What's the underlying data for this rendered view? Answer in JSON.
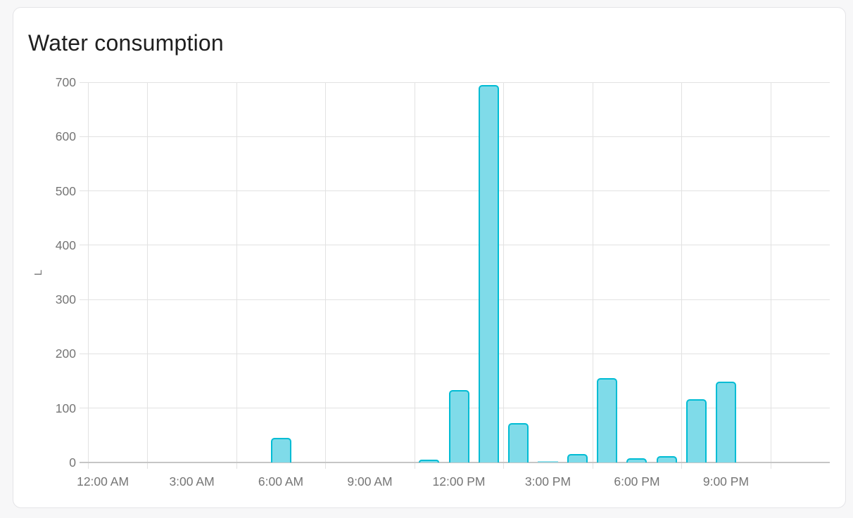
{
  "page": {
    "background": "#f7f7f8",
    "card_background": "#ffffff"
  },
  "chart_data": {
    "type": "bar",
    "title": "Water consumption",
    "ylabel": "L",
    "unit": "L",
    "ylim": [
      0,
      700
    ],
    "y_ticks": [
      0,
      100,
      200,
      300,
      400,
      500,
      600,
      700
    ],
    "x_tick_labels": [
      "12:00 AM",
      "3:00 AM",
      "6:00 AM",
      "9:00 AM",
      "12:00 PM",
      "3:00 PM",
      "6:00 PM",
      "9:00 PM"
    ],
    "x_tick_hours": [
      0,
      3,
      6,
      9,
      12,
      15,
      18,
      21
    ],
    "categories": [
      "12:00 AM",
      "1:00 AM",
      "2:00 AM",
      "3:00 AM",
      "4:00 AM",
      "5:00 AM",
      "6:00 AM",
      "7:00 AM",
      "8:00 AM",
      "9:00 AM",
      "10:00 AM",
      "11:00 AM",
      "12:00 PM",
      "1:00 PM",
      "2:00 PM",
      "3:00 PM",
      "4:00 PM",
      "5:00 PM",
      "6:00 PM",
      "7:00 PM",
      "8:00 PM",
      "9:00 PM",
      "10:00 PM",
      "11:00 PM"
    ],
    "values": [
      0,
      0,
      0,
      0,
      0,
      0,
      45,
      0,
      0,
      0,
      0,
      5,
      133,
      695,
      72,
      2,
      16,
      155,
      8,
      11,
      117,
      149,
      0,
      0
    ],
    "grid": true,
    "legend_position": "none",
    "colors": {
      "bar_border": "#00bcd4",
      "bar_fill": "#7fdbe9",
      "grid": "#e2e2e2",
      "axis": "#c6c6c6",
      "tick_text": "#757575",
      "title_text": "#1f1f1f"
    }
  }
}
